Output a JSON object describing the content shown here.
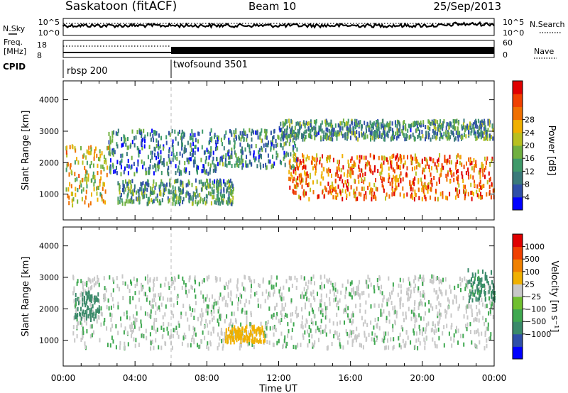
{
  "header": {
    "station": "Saskatoon (fitACF)",
    "beam": "Beam 10",
    "date": "25/Sep/2013"
  },
  "colors": {
    "axis": "#000000",
    "background": "#ffffff",
    "noise_sky": "#000000",
    "ground_scatter": "#c8c8c8"
  },
  "panels": {
    "noise": {
      "left_label": "N.Sky",
      "left_ticks": [
        "10^5",
        "10^0"
      ],
      "right_label": "N.Search",
      "right_ticks": [
        "10^5",
        "10^0"
      ]
    },
    "freq": {
      "left_label_1": "Freq.",
      "left_label_2": "[MHz]",
      "left_ticks": [
        "18",
        "8"
      ],
      "right_label": "Nave",
      "right_ticks": [
        "60",
        "0"
      ]
    },
    "cpid": {
      "label": "CPID",
      "segments": [
        {
          "name": "rbsp 200",
          "start_hour": 0
        },
        {
          "name": "twofsound 3501",
          "start_hour": 6
        }
      ]
    }
  },
  "chart_data": [
    {
      "type": "heatmap",
      "title": "",
      "quantity": "Power",
      "ylabel": "Slant Range [km]",
      "xlabel": "Time UT",
      "xlim": [
        0,
        24
      ],
      "ylim": [
        180,
        4600
      ],
      "x_ticks": [
        "00:00",
        "04:00",
        "08:00",
        "12:00",
        "16:00",
        "20:00",
        "00:00"
      ],
      "y_ticks": [
        1000,
        2000,
        3000,
        4000
      ],
      "colorbar": {
        "label": "Power [dB]",
        "ticks": [
          "4",
          "8",
          "12",
          "16",
          "20",
          "24",
          "28"
        ],
        "range": [
          0,
          31
        ],
        "colors": [
          "#0000ff",
          "#2f4fa8",
          "#3a7a7a",
          "#3f9a6a",
          "#70b040",
          "#b8c020",
          "#f0b000",
          "#f07000",
          "#f04000",
          "#e00000"
        ]
      },
      "features": [
        {
          "name": "early echoes",
          "x": [
            0.1,
            2.5
          ],
          "y": [
            700,
            2600
          ],
          "power": 18
        },
        {
          "name": "rising band",
          "x": [
            2.5,
            8.8
          ],
          "y": [
            1700,
            3100
          ],
          "power": 8
        },
        {
          "name": "lower arc",
          "x": [
            3.0,
            9.5
          ],
          "y": [
            750,
            1500
          ],
          "power": 10
        },
        {
          "name": "descending band",
          "x": [
            8.8,
            13.0
          ],
          "y": [
            1900,
            3100
          ],
          "power": 9
        },
        {
          "name": "main band",
          "x": [
            12.5,
            24.0
          ],
          "y": [
            900,
            2300
          ],
          "power": 24
        },
        {
          "name": "upper weak layer",
          "x": [
            12.0,
            24.0
          ],
          "y": [
            2800,
            3400
          ],
          "power": 10
        }
      ]
    },
    {
      "type": "heatmap",
      "title": "",
      "quantity": "Velocity",
      "ylabel": "Slant Range [km]",
      "xlabel": "Time UT",
      "xlim": [
        0,
        24
      ],
      "ylim": [
        180,
        4600
      ],
      "x_ticks": [
        "00:00",
        "04:00",
        "08:00",
        "12:00",
        "16:00",
        "20:00",
        "00:00"
      ],
      "y_ticks": [
        1000,
        2000,
        3000,
        4000
      ],
      "colorbar": {
        "label": "Velocity [m s⁻¹]",
        "ticks": [
          "1000",
          "500",
          "100",
          "25",
          "−25",
          "−100",
          "−500",
          "−1000"
        ],
        "colors": [
          "#0000ff",
          "#2f4fa8",
          "#3a8a6a",
          "#3fa850",
          "#70c030",
          "#c8c8c8",
          "#f0b000",
          "#f08000",
          "#f04000",
          "#e00000"
        ]
      },
      "features": [
        {
          "name": "ground scatter",
          "x": [
            0.5,
            24.0
          ],
          "y": [
            800,
            3100
          ],
          "velocity": 0
        },
        {
          "name": "negative velocity patch",
          "x": [
            9.0,
            11.2
          ],
          "y": [
            1000,
            1500
          ],
          "velocity": -300
        },
        {
          "name": "early positive patch",
          "x": [
            0.6,
            2.0
          ],
          "y": [
            1700,
            2600
          ],
          "velocity": 200
        },
        {
          "name": "late positive patch",
          "x": [
            22.5,
            24.0
          ],
          "y": [
            2300,
            3300
          ],
          "velocity": 150
        }
      ]
    }
  ]
}
